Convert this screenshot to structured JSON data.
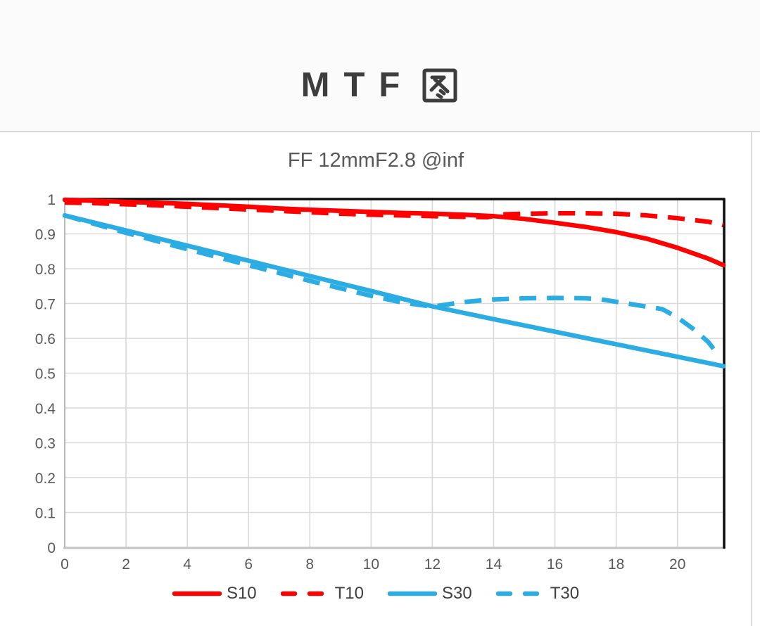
{
  "page": {
    "title": "MTF图",
    "title_latin": "MTF",
    "title_cjk": "图"
  },
  "chart_data": {
    "type": "line",
    "title": "FF 12mmF2.8 @inf",
    "xlabel": "",
    "ylabel": "",
    "xlim": [
      0,
      21.5
    ],
    "ylim": [
      0,
      1
    ],
    "x_ticks": [
      0,
      2,
      4,
      6,
      8,
      10,
      12,
      14,
      16,
      18,
      20
    ],
    "y_ticks": [
      0,
      0.1,
      0.2,
      0.3,
      0.4,
      0.5,
      0.6,
      0.7,
      0.8,
      0.9,
      1
    ],
    "grid": true,
    "legend_position": "bottom",
    "colors": {
      "red": "#ff0000",
      "cyan": "#2bace2"
    },
    "series": [
      {
        "name": "S10",
        "color": "#ff0000",
        "style": "solid",
        "points": [
          [
            0,
            0.998
          ],
          [
            1,
            0.995
          ],
          [
            2,
            0.992
          ],
          [
            3,
            0.989
          ],
          [
            4,
            0.986
          ],
          [
            5,
            0.982
          ],
          [
            6,
            0.978
          ],
          [
            7,
            0.973
          ],
          [
            8,
            0.969
          ],
          [
            9,
            0.966
          ],
          [
            10,
            0.963
          ],
          [
            11,
            0.96
          ],
          [
            12,
            0.958
          ],
          [
            13,
            0.955
          ],
          [
            14,
            0.951
          ],
          [
            15,
            0.943
          ],
          [
            16,
            0.932
          ],
          [
            17,
            0.92
          ],
          [
            18,
            0.905
          ],
          [
            19,
            0.886
          ],
          [
            20,
            0.86
          ],
          [
            21,
            0.829
          ],
          [
            21.5,
            0.81
          ]
        ]
      },
      {
        "name": "T10",
        "color": "#ff0000",
        "style": "dashed",
        "points": [
          [
            0,
            0.99
          ],
          [
            1,
            0.988
          ],
          [
            2,
            0.985
          ],
          [
            3,
            0.982
          ],
          [
            4,
            0.978
          ],
          [
            5,
            0.974
          ],
          [
            6,
            0.97
          ],
          [
            7,
            0.966
          ],
          [
            8,
            0.962
          ],
          [
            9,
            0.958
          ],
          [
            10,
            0.955
          ],
          [
            11,
            0.953
          ],
          [
            12,
            0.951
          ],
          [
            13,
            0.949
          ],
          [
            13.8,
            0.948
          ],
          [
            14.3,
            0.956
          ],
          [
            15,
            0.958
          ],
          [
            16,
            0.959
          ],
          [
            17,
            0.959
          ],
          [
            18,
            0.958
          ],
          [
            19,
            0.953
          ],
          [
            20,
            0.945
          ],
          [
            21,
            0.935
          ],
          [
            21.5,
            0.925
          ]
        ]
      },
      {
        "name": "S30",
        "color": "#2bace2",
        "style": "solid",
        "points": [
          [
            0,
            0.953
          ],
          [
            2,
            0.91
          ],
          [
            4,
            0.866
          ],
          [
            6,
            0.823
          ],
          [
            8,
            0.779
          ],
          [
            10,
            0.736
          ],
          [
            12,
            0.692
          ],
          [
            14,
            0.655
          ],
          [
            16,
            0.619
          ],
          [
            18,
            0.583
          ],
          [
            20,
            0.547
          ],
          [
            21.5,
            0.52
          ]
        ]
      },
      {
        "name": "T30",
        "color": "#2bace2",
        "style": "dashed",
        "points": [
          [
            0,
            0.953
          ],
          [
            2,
            0.903
          ],
          [
            4,
            0.856
          ],
          [
            6,
            0.81
          ],
          [
            8,
            0.765
          ],
          [
            10,
            0.722
          ],
          [
            11,
            0.703
          ],
          [
            12,
            0.691
          ],
          [
            13,
            0.704
          ],
          [
            14,
            0.712
          ],
          [
            15,
            0.715
          ],
          [
            16,
            0.716
          ],
          [
            17,
            0.715
          ],
          [
            17.5,
            0.712
          ],
          [
            18,
            0.705
          ],
          [
            19,
            0.691
          ],
          [
            19.5,
            0.684
          ],
          [
            20,
            0.66
          ],
          [
            20.5,
            0.628
          ],
          [
            21,
            0.59
          ],
          [
            21.3,
            0.556
          ]
        ]
      }
    ]
  }
}
